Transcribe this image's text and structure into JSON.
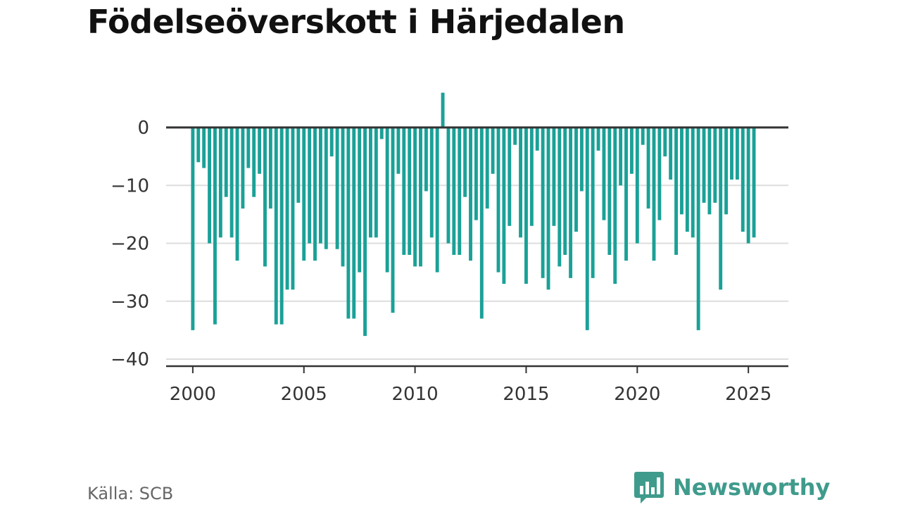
{
  "title": "Födelseöverskott i Härjedalen",
  "source": "Källa: SCB",
  "brand": {
    "name": "Newsworthy",
    "color": "#3f9b8c",
    "icon": "chart-bubble-icon"
  },
  "colors": {
    "bar": "#1aa197",
    "zero_line": "#333333",
    "grid": "#dddddd",
    "axis": "#333333"
  },
  "chart_data": {
    "type": "bar",
    "title": "Födelseöverskott i Härjedalen",
    "xlabel": "",
    "ylabel": "",
    "ylim": [
      -40,
      6
    ],
    "y_ticks": [
      0,
      -10,
      -20,
      -30,
      -40
    ],
    "y_tick_labels": [
      "0",
      "−10",
      "−20",
      "−30",
      "−40"
    ],
    "x_ticks": [
      2000,
      2005,
      2010,
      2015,
      2020,
      2025
    ],
    "x_tick_labels": [
      "2000",
      "2005",
      "2010",
      "2015",
      "2020",
      "2025"
    ],
    "x_start": 2000.0,
    "x_step": 0.25,
    "x_range": [
      1998.8,
      2026.8
    ],
    "grid": "horizontal",
    "values": [
      -35,
      -6,
      -7,
      -20,
      -34,
      -19,
      -12,
      -19,
      -23,
      -14,
      -7,
      -12,
      -8,
      -24,
      -14,
      -34,
      -34,
      -28,
      -28,
      -13,
      -23,
      -20,
      -23,
      -20,
      -21,
      -5,
      -21,
      -24,
      -33,
      -33,
      -25,
      -36,
      -19,
      -19,
      -2,
      -25,
      -32,
      -8,
      -22,
      -22,
      -24,
      -24,
      -11,
      -19,
      -25,
      6,
      -20,
      -22,
      -22,
      -12,
      -23,
      -16,
      -33,
      -14,
      -8,
      -25,
      -27,
      -17,
      -3,
      -19,
      -27,
      -17,
      -4,
      -26,
      -28,
      -17,
      -24,
      -22,
      -26,
      -18,
      -11,
      -35,
      -26,
      -4,
      -16,
      -22,
      -27,
      -10,
      -23,
      -8,
      -20,
      -3,
      -14,
      -23,
      -16,
      -5,
      -9,
      -22,
      -15,
      -18,
      -19,
      -35,
      -13,
      -15,
      -13,
      -28,
      -15,
      -9,
      -9,
      -18,
      -20,
      -19
    ]
  }
}
